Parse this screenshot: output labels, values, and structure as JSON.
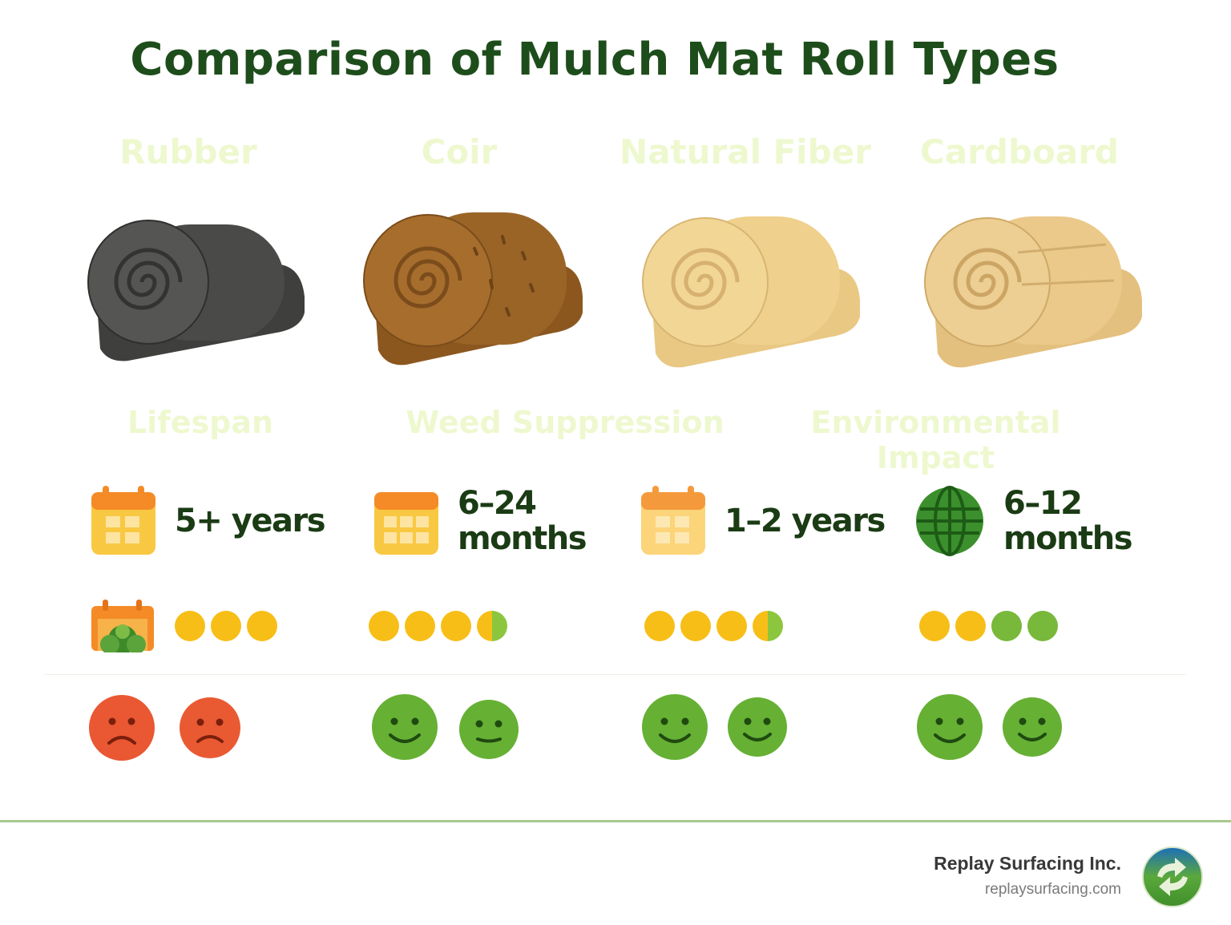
{
  "title": "Comparison of Mulch Mat Roll Types",
  "materials": [
    {
      "name": "Rubber",
      "lifespan": "5+ years",
      "weed_rating": 3,
      "env_rating": 0
    },
    {
      "name": "Coir",
      "lifespan": "6–24 months",
      "weed_rating": 3.5,
      "env_rating": 4
    },
    {
      "name": "Natural Fiber",
      "lifespan": "1–2 years",
      "weed_rating": 3.5,
      "env_rating": 4
    },
    {
      "name": "Cardboard",
      "lifespan": "6–12 months",
      "weed_rating": 2,
      "env_rating": 4
    }
  ],
  "criteria": {
    "lifespan": "Lifespan",
    "weed": "Weed Suppression",
    "env": "Environmental Impact"
  },
  "lifespan_lines": [
    [
      "5+ years"
    ],
    [
      "6–24",
      "months"
    ],
    [
      "1–2 years"
    ],
    [
      "6–12",
      "months"
    ]
  ],
  "colors": {
    "title": "#1e4d1c",
    "rubber": "#4a4a48",
    "coir": "#9a6427",
    "natural_fiber": "#efd08c",
    "cardboard": "#eac98a",
    "dot_yellow": "#f7be17",
    "dot_green": "#78b83a",
    "face_sad": "#ea5733",
    "face_happy": "#66b034"
  },
  "icons": {
    "lifespan": [
      "calendar-icon",
      "calendar-icon",
      "calendar-icon",
      "globe-icon"
    ],
    "weed": "weed-calendar-icon",
    "env": [
      "sad-face-icon",
      "smile-face-icon",
      "neutral-face-icon",
      "smile-face-icon"
    ]
  },
  "footer": {
    "company": "Replay Surfacing Inc.",
    "url": "replaysurfacing.com"
  }
}
